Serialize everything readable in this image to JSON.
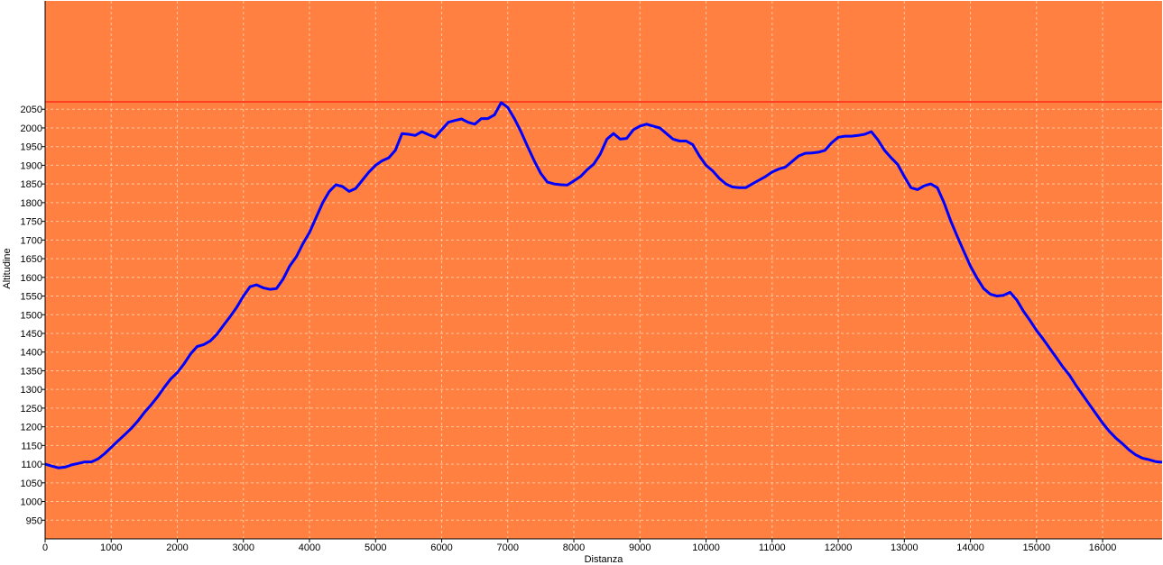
{
  "chart_data": {
    "type": "line",
    "xlabel": "Distanza",
    "ylabel": "Altitudine",
    "xlim": [
      0,
      16900
    ],
    "ylim": [
      900,
      2340
    ],
    "x_ticks": [
      0,
      1000,
      2000,
      3000,
      4000,
      5000,
      6000,
      7000,
      8000,
      9000,
      10000,
      11000,
      12000,
      13000,
      14000,
      15000,
      16000
    ],
    "y_ticks": [
      950,
      1000,
      1050,
      1100,
      1150,
      1200,
      1250,
      1300,
      1350,
      1400,
      1450,
      1500,
      1550,
      1600,
      1650,
      1700,
      1750,
      1800,
      1850,
      1900,
      1950,
      2000,
      2050
    ],
    "threshold_line": 2070,
    "grid": true,
    "colors": {
      "plot_background": "#ff8040",
      "line": "#0000ff",
      "threshold": "#ff0000",
      "grid": "#ffc8a0"
    },
    "series": [
      {
        "x": [
          0,
          100,
          200,
          300,
          400,
          500,
          600,
          700,
          800,
          900,
          1000,
          1100,
          1200,
          1300,
          1400,
          1500,
          1600,
          1700,
          1800,
          1900,
          2000,
          2100,
          2200,
          2300,
          2400,
          2500,
          2600,
          2700,
          2800,
          2900,
          3000,
          3100,
          3200,
          3300,
          3400,
          3500,
          3600,
          3700,
          3800,
          3900,
          4000,
          4100,
          4200,
          4300,
          4400,
          4500,
          4600,
          4700,
          4800,
          4900,
          5000,
          5100,
          5200,
          5300,
          5400,
          5500,
          5600,
          5700,
          5800,
          5900,
          6000,
          6100,
          6200,
          6300,
          6400,
          6500,
          6600,
          6700,
          6800,
          6900,
          7000,
          7100,
          7200,
          7300,
          7400,
          7500,
          7600,
          7700,
          7800,
          7900,
          8000,
          8100,
          8200,
          8300,
          8400,
          8500,
          8600,
          8700,
          8800,
          8900,
          9000,
          9100,
          9200,
          9300,
          9400,
          9500,
          9600,
          9700,
          9800,
          9900,
          10000,
          10100,
          10200,
          10300,
          10400,
          10500,
          10600,
          10700,
          10800,
          10900,
          11000,
          11100,
          11200,
          11300,
          11400,
          11500,
          11600,
          11700,
          11800,
          11900,
          12000,
          12100,
          12200,
          12300,
          12400,
          12500,
          12600,
          12700,
          12800,
          12900,
          13000,
          13100,
          13200,
          13300,
          13400,
          13500,
          13600,
          13700,
          13800,
          13900,
          14000,
          14100,
          14200,
          14300,
          14400,
          14500,
          14600,
          14700,
          14800,
          14900,
          15000,
          15100,
          15200,
          15300,
          15400,
          15500,
          15600,
          15700,
          15800,
          15900,
          16000,
          16100,
          16200,
          16300,
          16400,
          16500,
          16600,
          16700,
          16800,
          16900
        ],
        "values": [
          1100,
          1095,
          1090,
          1092,
          1098,
          1102,
          1106,
          1106,
          1114,
          1128,
          1145,
          1162,
          1178,
          1195,
          1215,
          1238,
          1258,
          1280,
          1305,
          1328,
          1345,
          1368,
          1395,
          1415,
          1420,
          1430,
          1448,
          1472,
          1495,
          1520,
          1550,
          1575,
          1580,
          1572,
          1568,
          1570,
          1595,
          1630,
          1655,
          1690,
          1720,
          1760,
          1800,
          1830,
          1848,
          1843,
          1830,
          1838,
          1860,
          1882,
          1900,
          1912,
          1920,
          1940,
          1985,
          1983,
          1980,
          1990,
          1982,
          1975,
          1995,
          2015,
          2020,
          2024,
          2015,
          2010,
          2025,
          2025,
          2035,
          2068,
          2055,
          2025,
          1990,
          1950,
          1912,
          1878,
          1855,
          1850,
          1848,
          1847,
          1858,
          1870,
          1888,
          1903,
          1930,
          1970,
          1985,
          1970,
          1972,
          1995,
          2005,
          2010,
          2005,
          2000,
          1985,
          1970,
          1965,
          1965,
          1955,
          1925,
          1900,
          1885,
          1865,
          1850,
          1842,
          1840,
          1840,
          1850,
          1860,
          1870,
          1882,
          1890,
          1895,
          1910,
          1925,
          1932,
          1933,
          1935,
          1940,
          1960,
          1975,
          1978,
          1978,
          1980,
          1983,
          1990,
          1968,
          1940,
          1920,
          1902,
          1870,
          1840,
          1835,
          1845,
          1850,
          1840,
          1800,
          1752,
          1710,
          1670,
          1630,
          1598,
          1570,
          1555,
          1550,
          1552,
          1560,
          1540,
          1510,
          1485,
          1458,
          1435,
          1410,
          1385,
          1360,
          1338,
          1310,
          1285,
          1260,
          1235,
          1210,
          1188,
          1170,
          1155,
          1138,
          1125,
          1116,
          1112,
          1107,
          1105
        ]
      }
    ]
  }
}
